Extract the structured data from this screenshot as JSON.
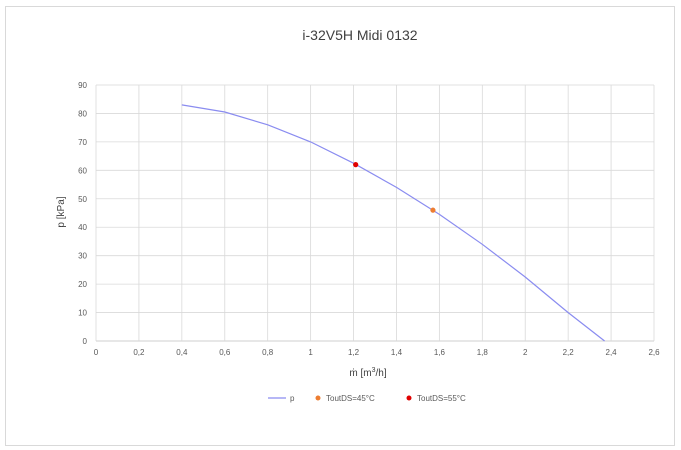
{
  "chart_data": {
    "type": "scatter",
    "title": "i-32V5H Midi 0132",
    "xlabel_main": "ṁ [m",
    "xlabel_sup": "3",
    "xlabel_tail": "/h]",
    "ylabel": "p [kPa]",
    "xlim": [
      0,
      2.6
    ],
    "ylim": [
      0,
      90
    ],
    "x_ticks": [
      0,
      0.2,
      0.4,
      0.6,
      0.8,
      1,
      1.2,
      1.4,
      1.6,
      1.8,
      2,
      2.2,
      2.4,
      2.6
    ],
    "x_tick_labels": [
      "0",
      "0,2",
      "0,4",
      "0,6",
      "0,8",
      "1",
      "1,2",
      "1,4",
      "1,6",
      "1,8",
      "2",
      "2,2",
      "2,4",
      "2,6"
    ],
    "y_ticks": [
      0,
      10,
      20,
      30,
      40,
      50,
      60,
      70,
      80,
      90
    ],
    "y_tick_labels": [
      "0",
      "10",
      "20",
      "30",
      "40",
      "50",
      "60",
      "70",
      "80",
      "90"
    ],
    "grid": true,
    "legend_position": "bottom",
    "series": [
      {
        "name": "p",
        "kind": "line",
        "color": "#8a8cf0",
        "points": [
          [
            0.4,
            83
          ],
          [
            0.6,
            80.5
          ],
          [
            0.8,
            76
          ],
          [
            1.0,
            70
          ],
          [
            1.2,
            62.5
          ],
          [
            1.4,
            54
          ],
          [
            1.6,
            44.5
          ],
          [
            1.8,
            34
          ],
          [
            2.0,
            22.5
          ],
          [
            2.2,
            10
          ],
          [
            2.37,
            -1
          ]
        ]
      },
      {
        "name": "ToutDS=45°C",
        "kind": "point",
        "color": "#ed7d31",
        "points": [
          [
            1.57,
            46
          ]
        ]
      },
      {
        "name": "ToutDS=55°C",
        "kind": "point",
        "color": "#e00000",
        "points": [
          [
            1.21,
            62
          ]
        ]
      }
    ]
  }
}
